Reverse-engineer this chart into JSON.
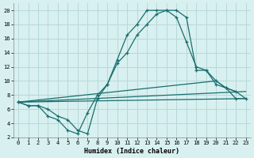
{
  "xlabel": "Humidex (Indice chaleur)",
  "bg_color": "#d8f0f0",
  "grid_color": "#b8d8d8",
  "line_color": "#1a6e6e",
  "xlim": [
    -0.5,
    23.5
  ],
  "ylim": [
    2,
    21
  ],
  "xticks": [
    0,
    1,
    2,
    3,
    4,
    5,
    6,
    7,
    8,
    9,
    10,
    11,
    12,
    13,
    14,
    15,
    16,
    17,
    18,
    19,
    20,
    21,
    22,
    23
  ],
  "yticks": [
    2,
    4,
    6,
    8,
    10,
    12,
    14,
    16,
    18,
    20
  ],
  "series": [
    {
      "x": [
        0,
        1,
        2,
        3,
        4,
        5,
        6,
        7,
        8,
        9,
        10,
        11,
        12,
        13,
        14,
        15,
        16,
        17,
        18,
        19,
        20,
        21,
        22
      ],
      "y": [
        7,
        6.5,
        6.5,
        6,
        5,
        4.5,
        3,
        2.5,
        7.5,
        9.5,
        13,
        16.5,
        18,
        20,
        20,
        20,
        19,
        15.5,
        12,
        11.5,
        10,
        9,
        8.5
      ],
      "marker": true
    },
    {
      "x": [
        0,
        1,
        2,
        3,
        4,
        5,
        6,
        7,
        8,
        9,
        10,
        11,
        12,
        13,
        14,
        15,
        16,
        17,
        18,
        19,
        20,
        21,
        22,
        23
      ],
      "y": [
        7,
        6.5,
        6.5,
        5,
        4.5,
        3,
        2.5,
        5.5,
        8,
        9.5,
        12.5,
        14,
        16.5,
        18,
        19.5,
        20,
        20,
        19,
        11.5,
        11.5,
        9.5,
        9,
        7.5,
        7.5
      ],
      "marker": true
    },
    {
      "x": [
        0,
        23
      ],
      "y": [
        7,
        7.5
      ],
      "marker": false
    },
    {
      "x": [
        0,
        23
      ],
      "y": [
        7,
        8.5
      ],
      "marker": false
    },
    {
      "x": [
        0,
        20,
        21,
        22,
        23
      ],
      "y": [
        7,
        10,
        9,
        8.5,
        7.5
      ],
      "marker": false
    }
  ]
}
